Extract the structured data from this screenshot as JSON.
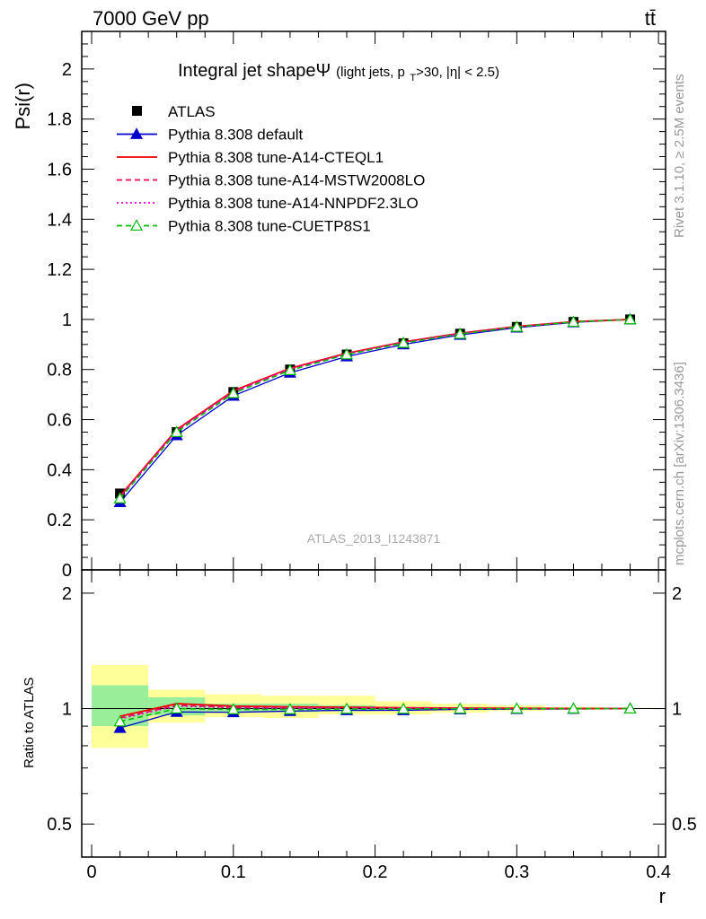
{
  "header": {
    "energy_label": "7000 GeV pp",
    "process_label": "tt̄"
  },
  "side_labels": {
    "rivet": "Rivet 3.1.10, ≥ 2.5M events",
    "mcplots": "mcplots.cern.ch [arXiv:1306.3436]"
  },
  "chart_data": {
    "type": "line",
    "title": "Integral jet shapeΨ",
    "subtitle": "(light jets, p_T>30, |η| < 2.5)",
    "watermark": "ATLAS_2013_I1243871",
    "xlabel": "r",
    "ylabel": "Psi(r)",
    "ratio_ylabel": "Ratio to ATLAS",
    "xlim": [
      -0.007,
      0.405
    ],
    "ylim": [
      0,
      2.15
    ],
    "ratio_ylim": [
      0.41,
      2.3
    ],
    "ratio_log": true,
    "x_ticks": [
      "0",
      "0.1",
      "0.2",
      "0.3",
      "0.4"
    ],
    "y_ticks": [
      "0",
      "0.2",
      "0.4",
      "0.6",
      "0.8",
      "1",
      "1.2",
      "1.4",
      "1.6",
      "1.8",
      "2"
    ],
    "ratio_ticks": [
      "0.5",
      "1",
      "2"
    ],
    "x": [
      0.02,
      0.06,
      0.1,
      0.14,
      0.18,
      0.22,
      0.26,
      0.3,
      0.34,
      0.38
    ],
    "data_series": {
      "name": "ATLAS",
      "values": [
        0.305,
        0.55,
        0.71,
        0.8,
        0.86,
        0.905,
        0.943,
        0.97,
        0.99,
        1.0
      ],
      "ratio_bands": {
        "bins": [
          [
            0.0,
            0.04
          ],
          [
            0.04,
            0.08
          ],
          [
            0.08,
            0.12
          ],
          [
            0.12,
            0.16
          ],
          [
            0.16,
            0.2
          ],
          [
            0.2,
            0.24
          ],
          [
            0.24,
            0.28
          ],
          [
            0.28,
            0.32
          ],
          [
            0.32,
            0.36
          ],
          [
            0.36,
            0.4
          ]
        ],
        "stat_lo": [
          0.9,
          0.96,
          0.98,
          0.98,
          0.985,
          0.99,
          0.992,
          0.995,
          0.997,
          0.999
        ],
        "stat_hi": [
          1.15,
          1.07,
          1.03,
          1.03,
          1.02,
          1.01,
          1.008,
          1.005,
          1.003,
          1.001
        ],
        "total_lo": [
          0.79,
          0.92,
          0.95,
          0.945,
          0.965,
          0.965,
          0.975,
          0.985,
          0.992,
          0.998
        ],
        "total_hi": [
          1.3,
          1.12,
          1.09,
          1.08,
          1.08,
          1.045,
          1.03,
          1.02,
          1.01,
          1.004
        ]
      }
    },
    "series": [
      {
        "name": "Pythia 8.308 default",
        "values": [
          0.27,
          0.537,
          0.695,
          0.787,
          0.852,
          0.9,
          0.938,
          0.967,
          0.988,
          1.0
        ],
        "ratio": [
          0.89,
          0.98,
          0.978,
          0.985,
          0.99,
          0.99,
          0.995,
          0.997,
          0.998,
          1.0
        ],
        "color": "#0000cc",
        "style": "solid",
        "marker": "triangle-filled"
      },
      {
        "name": "Pythia 8.308 tune-A14-CTEQL1",
        "values": [
          0.295,
          0.56,
          0.715,
          0.805,
          0.865,
          0.91,
          0.945,
          0.972,
          0.991,
          1.0
        ],
        "ratio": [
          0.955,
          1.03,
          1.015,
          1.01,
          1.008,
          1.005,
          1.003,
          1.002,
          1.001,
          1.0
        ],
        "color": "#ee0000",
        "style": "solid",
        "marker": "none"
      },
      {
        "name": "Pythia 8.308 tune-A14-MSTW2008LO",
        "values": [
          0.292,
          0.557,
          0.712,
          0.803,
          0.863,
          0.909,
          0.944,
          0.971,
          0.99,
          1.0
        ],
        "ratio": [
          0.945,
          1.02,
          1.008,
          1.005,
          1.004,
          1.003,
          1.002,
          1.001,
          1.0,
          1.0
        ],
        "color": "#ee0055",
        "style": "dashed",
        "marker": "none"
      },
      {
        "name": "Pythia 8.308 tune-A14-NNPDF2.3LO",
        "values": [
          0.29,
          0.556,
          0.711,
          0.802,
          0.862,
          0.908,
          0.944,
          0.971,
          0.99,
          1.0
        ],
        "ratio": [
          0.94,
          1.015,
          1.005,
          1.003,
          1.002,
          1.002,
          1.001,
          1.001,
          1.0,
          1.0
        ],
        "color": "#ee00cc",
        "style": "dotted",
        "marker": "none"
      },
      {
        "name": "Pythia 8.308 tune-CUETP8S1",
        "values": [
          0.285,
          0.55,
          0.705,
          0.797,
          0.86,
          0.906,
          0.942,
          0.97,
          0.99,
          1.0
        ],
        "ratio": [
          0.925,
          1.0,
          0.995,
          0.995,
          0.998,
          0.998,
          0.999,
          1.0,
          1.0,
          1.0
        ],
        "color": "#00bb00",
        "style": "dashed",
        "marker": "triangle-open"
      }
    ]
  }
}
